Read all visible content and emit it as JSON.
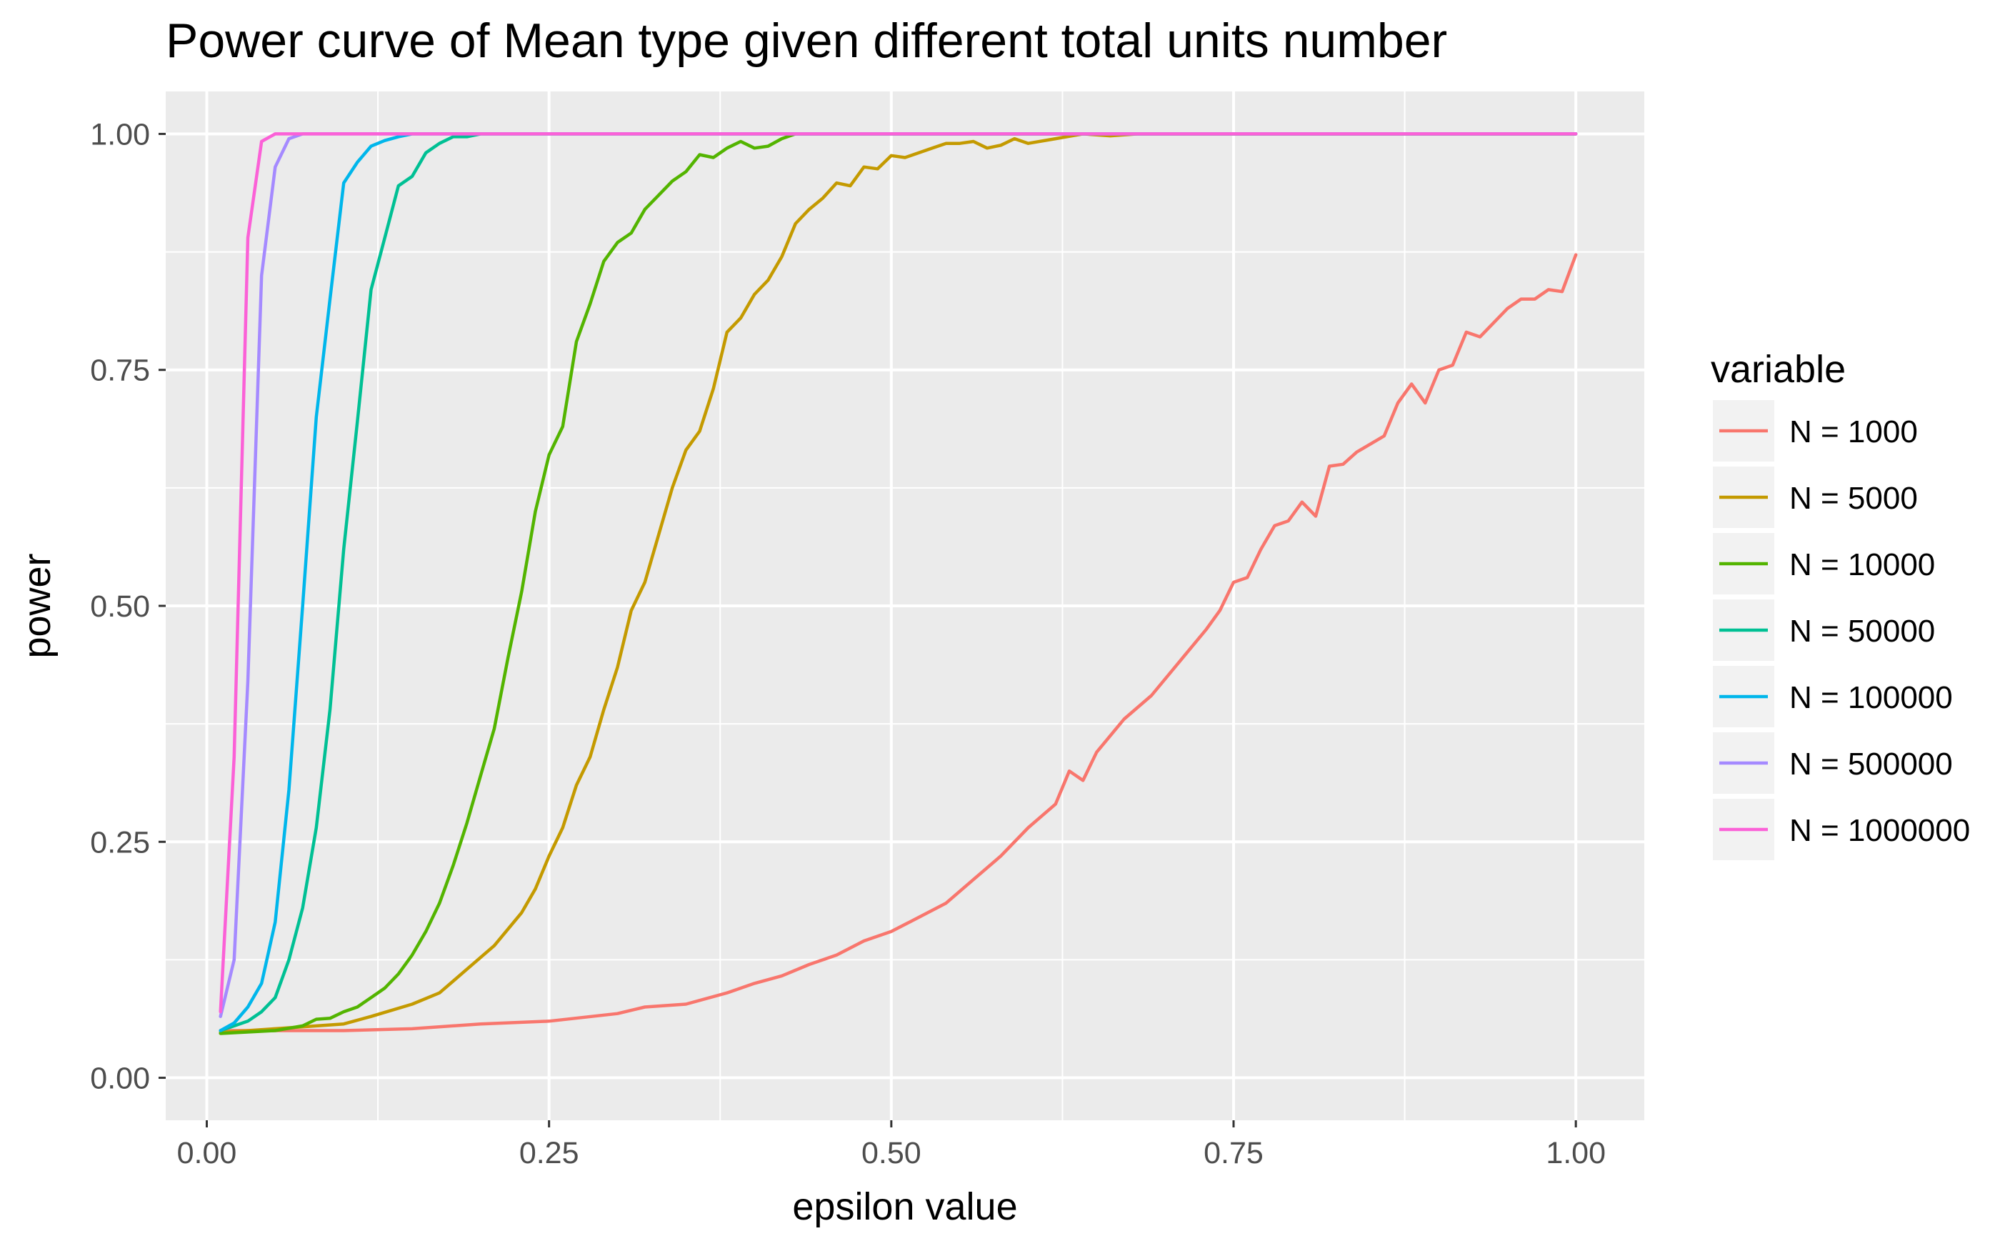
{
  "chart_data": {
    "type": "line",
    "title": "Power curve of Mean type given different total units number",
    "xlabel": "epsilon value",
    "ylabel": "power",
    "xlim": [
      -0.03,
      1.05
    ],
    "ylim": [
      -0.045,
      1.045
    ],
    "x_ticks": [
      0.0,
      0.25,
      0.5,
      0.75,
      1.0
    ],
    "x_tick_labels": [
      "0.00",
      "0.25",
      "0.50",
      "0.75",
      "1.00"
    ],
    "y_ticks": [
      0.0,
      0.25,
      0.5,
      0.75,
      1.0
    ],
    "y_tick_labels": [
      "0.00",
      "0.25",
      "0.50",
      "0.75",
      "1.00"
    ],
    "grid": true,
    "background": "#ebebeb",
    "legend": {
      "title": "variable",
      "position": "right"
    },
    "series": [
      {
        "name": "N = 1000",
        "color": "#F8766D",
        "points": [
          [
            0.01,
            0.05
          ],
          [
            0.05,
            0.05
          ],
          [
            0.1,
            0.05
          ],
          [
            0.15,
            0.052
          ],
          [
            0.2,
            0.057
          ],
          [
            0.25,
            0.06
          ],
          [
            0.3,
            0.068
          ],
          [
            0.32,
            0.075
          ],
          [
            0.35,
            0.078
          ],
          [
            0.38,
            0.09
          ],
          [
            0.4,
            0.1
          ],
          [
            0.42,
            0.108
          ],
          [
            0.44,
            0.12
          ],
          [
            0.46,
            0.13
          ],
          [
            0.48,
            0.145
          ],
          [
            0.5,
            0.155
          ],
          [
            0.52,
            0.17
          ],
          [
            0.54,
            0.185
          ],
          [
            0.56,
            0.21
          ],
          [
            0.58,
            0.235
          ],
          [
            0.6,
            0.265
          ],
          [
            0.62,
            0.29
          ],
          [
            0.63,
            0.325
          ],
          [
            0.64,
            0.315
          ],
          [
            0.65,
            0.345
          ],
          [
            0.67,
            0.38
          ],
          [
            0.69,
            0.405
          ],
          [
            0.71,
            0.44
          ],
          [
            0.73,
            0.475
          ],
          [
            0.74,
            0.495
          ],
          [
            0.75,
            0.525
          ],
          [
            0.76,
            0.53
          ],
          [
            0.77,
            0.56
          ],
          [
            0.78,
            0.585
          ],
          [
            0.79,
            0.59
          ],
          [
            0.8,
            0.61
          ],
          [
            0.81,
            0.595
          ],
          [
            0.82,
            0.648
          ],
          [
            0.83,
            0.65
          ],
          [
            0.84,
            0.663
          ],
          [
            0.86,
            0.68
          ],
          [
            0.87,
            0.715
          ],
          [
            0.88,
            0.735
          ],
          [
            0.89,
            0.715
          ],
          [
            0.9,
            0.75
          ],
          [
            0.91,
            0.755
          ],
          [
            0.92,
            0.79
          ],
          [
            0.93,
            0.785
          ],
          [
            0.94,
            0.8
          ],
          [
            0.95,
            0.815
          ],
          [
            0.96,
            0.825
          ],
          [
            0.97,
            0.825
          ],
          [
            0.98,
            0.835
          ],
          [
            0.99,
            0.833
          ],
          [
            1.0,
            0.872
          ]
        ]
      },
      {
        "name": "N = 5000",
        "color": "#C49A00",
        "points": [
          [
            0.01,
            0.048
          ],
          [
            0.05,
            0.052
          ],
          [
            0.1,
            0.057
          ],
          [
            0.12,
            0.065
          ],
          [
            0.15,
            0.078
          ],
          [
            0.17,
            0.09
          ],
          [
            0.19,
            0.115
          ],
          [
            0.21,
            0.14
          ],
          [
            0.23,
            0.175
          ],
          [
            0.24,
            0.2
          ],
          [
            0.25,
            0.235
          ],
          [
            0.26,
            0.265
          ],
          [
            0.27,
            0.31
          ],
          [
            0.28,
            0.34
          ],
          [
            0.29,
            0.39
          ],
          [
            0.3,
            0.435
          ],
          [
            0.31,
            0.495
          ],
          [
            0.32,
            0.525
          ],
          [
            0.33,
            0.575
          ],
          [
            0.34,
            0.625
          ],
          [
            0.35,
            0.665
          ],
          [
            0.36,
            0.685
          ],
          [
            0.37,
            0.73
          ],
          [
            0.38,
            0.79
          ],
          [
            0.39,
            0.805
          ],
          [
            0.4,
            0.83
          ],
          [
            0.41,
            0.845
          ],
          [
            0.42,
            0.87
          ],
          [
            0.43,
            0.905
          ],
          [
            0.44,
            0.92
          ],
          [
            0.45,
            0.932
          ],
          [
            0.46,
            0.948
          ],
          [
            0.47,
            0.945
          ],
          [
            0.48,
            0.965
          ],
          [
            0.49,
            0.963
          ],
          [
            0.5,
            0.977
          ],
          [
            0.51,
            0.975
          ],
          [
            0.53,
            0.985
          ],
          [
            0.54,
            0.99
          ],
          [
            0.55,
            0.99
          ],
          [
            0.56,
            0.992
          ],
          [
            0.57,
            0.985
          ],
          [
            0.58,
            0.988
          ],
          [
            0.59,
            0.995
          ],
          [
            0.6,
            0.99
          ],
          [
            0.62,
            0.995
          ],
          [
            0.64,
            1.0
          ],
          [
            0.66,
            0.998
          ],
          [
            0.68,
            1.0
          ],
          [
            0.7,
            1.0
          ],
          [
            0.75,
            1.0
          ],
          [
            0.8,
            1.0
          ],
          [
            0.9,
            1.0
          ],
          [
            1.0,
            1.0
          ]
        ]
      },
      {
        "name": "N = 10000",
        "color": "#53B400",
        "points": [
          [
            0.01,
            0.047
          ],
          [
            0.05,
            0.05
          ],
          [
            0.07,
            0.055
          ],
          [
            0.08,
            0.062
          ],
          [
            0.09,
            0.063
          ],
          [
            0.1,
            0.07
          ],
          [
            0.11,
            0.075
          ],
          [
            0.12,
            0.085
          ],
          [
            0.13,
            0.095
          ],
          [
            0.14,
            0.11
          ],
          [
            0.15,
            0.13
          ],
          [
            0.16,
            0.155
          ],
          [
            0.17,
            0.185
          ],
          [
            0.18,
            0.225
          ],
          [
            0.19,
            0.27
          ],
          [
            0.2,
            0.32
          ],
          [
            0.21,
            0.37
          ],
          [
            0.22,
            0.445
          ],
          [
            0.23,
            0.515
          ],
          [
            0.24,
            0.6
          ],
          [
            0.25,
            0.66
          ],
          [
            0.26,
            0.69
          ],
          [
            0.27,
            0.78
          ],
          [
            0.28,
            0.82
          ],
          [
            0.29,
            0.865
          ],
          [
            0.3,
            0.885
          ],
          [
            0.31,
            0.895
          ],
          [
            0.32,
            0.92
          ],
          [
            0.33,
            0.935
          ],
          [
            0.34,
            0.95
          ],
          [
            0.35,
            0.96
          ],
          [
            0.36,
            0.978
          ],
          [
            0.37,
            0.975
          ],
          [
            0.38,
            0.985
          ],
          [
            0.39,
            0.992
          ],
          [
            0.4,
            0.985
          ],
          [
            0.41,
            0.987
          ],
          [
            0.42,
            0.995
          ],
          [
            0.43,
            1.0
          ],
          [
            0.45,
            1.0
          ],
          [
            0.5,
            1.0
          ],
          [
            0.6,
            1.0
          ],
          [
            0.8,
            1.0
          ],
          [
            1.0,
            1.0
          ]
        ]
      },
      {
        "name": "N = 50000",
        "color": "#00C094",
        "points": [
          [
            0.01,
            0.05
          ],
          [
            0.02,
            0.055
          ],
          [
            0.03,
            0.06
          ],
          [
            0.04,
            0.07
          ],
          [
            0.05,
            0.085
          ],
          [
            0.06,
            0.125
          ],
          [
            0.07,
            0.18
          ],
          [
            0.08,
            0.265
          ],
          [
            0.09,
            0.39
          ],
          [
            0.1,
            0.56
          ],
          [
            0.11,
            0.695
          ],
          [
            0.12,
            0.835
          ],
          [
            0.13,
            0.89
          ],
          [
            0.14,
            0.945
          ],
          [
            0.15,
            0.955
          ],
          [
            0.16,
            0.98
          ],
          [
            0.17,
            0.99
          ],
          [
            0.18,
            0.997
          ],
          [
            0.19,
            0.997
          ],
          [
            0.2,
            1.0
          ],
          [
            0.25,
            1.0
          ],
          [
            0.3,
            1.0
          ],
          [
            0.5,
            1.0
          ],
          [
            1.0,
            1.0
          ]
        ]
      },
      {
        "name": "N = 100000",
        "color": "#00B6EB",
        "points": [
          [
            0.01,
            0.05
          ],
          [
            0.02,
            0.058
          ],
          [
            0.03,
            0.075
          ],
          [
            0.04,
            0.1
          ],
          [
            0.05,
            0.165
          ],
          [
            0.06,
            0.305
          ],
          [
            0.07,
            0.5
          ],
          [
            0.08,
            0.7
          ],
          [
            0.09,
            0.825
          ],
          [
            0.1,
            0.948
          ],
          [
            0.11,
            0.97
          ],
          [
            0.12,
            0.987
          ],
          [
            0.13,
            0.993
          ],
          [
            0.14,
            0.997
          ],
          [
            0.15,
            1.0
          ],
          [
            0.2,
            1.0
          ],
          [
            0.5,
            1.0
          ],
          [
            1.0,
            1.0
          ]
        ]
      },
      {
        "name": "N = 500000",
        "color": "#A58AFF",
        "points": [
          [
            0.01,
            0.065
          ],
          [
            0.02,
            0.125
          ],
          [
            0.03,
            0.42
          ],
          [
            0.04,
            0.85
          ],
          [
            0.05,
            0.965
          ],
          [
            0.06,
            0.995
          ],
          [
            0.07,
            1.0
          ],
          [
            0.1,
            1.0
          ],
          [
            0.5,
            1.0
          ],
          [
            1.0,
            1.0
          ]
        ]
      },
      {
        "name": "N = 1000000",
        "color": "#FB61D7",
        "points": [
          [
            0.01,
            0.07
          ],
          [
            0.02,
            0.34
          ],
          [
            0.03,
            0.89
          ],
          [
            0.04,
            0.992
          ],
          [
            0.05,
            1.0
          ],
          [
            0.1,
            1.0
          ],
          [
            0.5,
            1.0
          ],
          [
            1.0,
            1.0
          ]
        ]
      }
    ]
  }
}
